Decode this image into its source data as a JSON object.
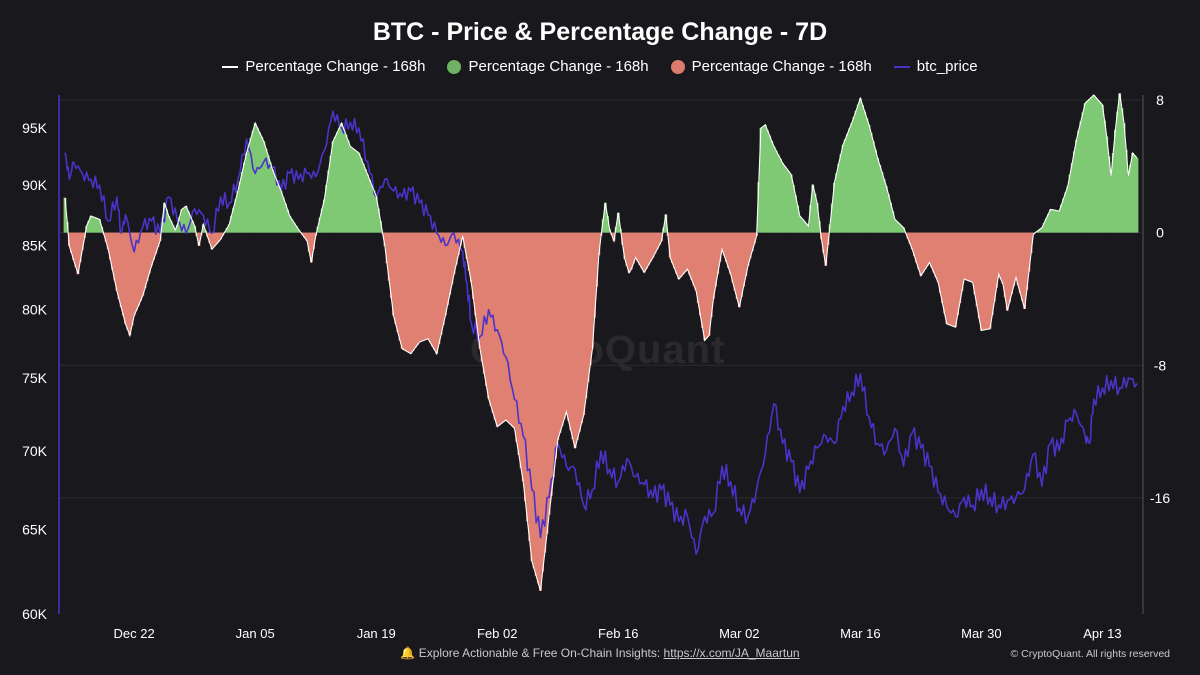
{
  "chart_data": {
    "type": "area+line",
    "title": "BTC - Price & Percentage Change - 7D",
    "legend": [
      {
        "label": "Percentage Change - 168h",
        "kind": "line",
        "color": "#ffffff"
      },
      {
        "label": "Percentage Change - 168h",
        "kind": "dot",
        "color": "#6fb165"
      },
      {
        "label": "Percentage Change - 168h",
        "kind": "dot",
        "color": "#dc7a6e"
      },
      {
        "label": "btc_price",
        "kind": "line",
        "color": "#4b32c8"
      }
    ],
    "colors": {
      "positive": "#7fc975",
      "negative": "#e08072",
      "price": "#4b32c8",
      "change_line": "#ffffff"
    },
    "x_axis": {
      "start": "2024-12-14",
      "end": "2025-04-16",
      "tick_labels": [
        "Dec 22",
        "Jan 05",
        "Jan 19",
        "Feb 02",
        "Feb 16",
        "Mar 02",
        "Mar 16",
        "Mar 30",
        "Apr 13"
      ],
      "tick_days": [
        8,
        22,
        36,
        50,
        64,
        78,
        92,
        106,
        120
      ]
    },
    "y_left": {
      "label": "btc_price",
      "scale": "log",
      "range": [
        60000,
        98000
      ],
      "ticks": [
        60000,
        65000,
        70000,
        75000,
        80000,
        85000,
        90000,
        95000
      ],
      "tick_labels": [
        "60K",
        "65K",
        "70K",
        "75K",
        "80K",
        "85K",
        "90K",
        "95K"
      ]
    },
    "y_right": {
      "label": "Percentage Change - 168h",
      "range": [
        -23,
        8.3
      ],
      "ticks": [
        8,
        0,
        -8,
        -16
      ],
      "tick_labels": [
        "8",
        "0",
        "-8",
        "-16"
      ]
    },
    "pct_change": [
      [
        0,
        2.1
      ],
      [
        0.5,
        -0.8
      ],
      [
        1.5,
        -2.5
      ],
      [
        2.5,
        0.4
      ],
      [
        3,
        1.0
      ],
      [
        4,
        0.8
      ],
      [
        5,
        -1
      ],
      [
        6,
        -3.5
      ],
      [
        7,
        -5.5
      ],
      [
        7.5,
        -6.2
      ],
      [
        8,
        -5
      ],
      [
        9,
        -3.8
      ],
      [
        10,
        -2
      ],
      [
        11,
        -0.5
      ],
      [
        11.5,
        1.8
      ],
      [
        12,
        1.0
      ],
      [
        12.8,
        0.1
      ],
      [
        13.5,
        1.4
      ],
      [
        14,
        1.6
      ],
      [
        15,
        0.4
      ],
      [
        15.5,
        -0.8
      ],
      [
        16,
        0.5
      ],
      [
        17,
        -1
      ],
      [
        18,
        -0.4
      ],
      [
        19,
        0.5
      ],
      [
        20,
        2.5
      ],
      [
        21,
        4.8
      ],
      [
        22,
        6.6
      ],
      [
        23,
        5.5
      ],
      [
        24,
        3.8
      ],
      [
        25,
        2.5
      ],
      [
        26,
        1.0
      ],
      [
        27,
        0.2
      ],
      [
        28,
        -0.5
      ],
      [
        28.5,
        -1.8
      ],
      [
        29,
        -0.2
      ],
      [
        30,
        2
      ],
      [
        31,
        5.5
      ],
      [
        32,
        6.6
      ],
      [
        33,
        5.2
      ],
      [
        34,
        4.8
      ],
      [
        35,
        3.5
      ],
      [
        36,
        2.2
      ],
      [
        37,
        -0.8
      ],
      [
        38,
        -5
      ],
      [
        39,
        -7
      ],
      [
        40,
        -7.3
      ],
      [
        41,
        -6.6
      ],
      [
        42,
        -6.4
      ],
      [
        43,
        -7.3
      ],
      [
        44,
        -5
      ],
      [
        45,
        -2.5
      ],
      [
        46,
        -0.2
      ],
      [
        47,
        -3
      ],
      [
        48,
        -7
      ],
      [
        49,
        -10
      ],
      [
        50,
        -11.7
      ],
      [
        51,
        -11.3
      ],
      [
        52,
        -11.8
      ],
      [
        53,
        -15
      ],
      [
        54,
        -19.8
      ],
      [
        55,
        -21.6
      ],
      [
        56,
        -17
      ],
      [
        57,
        -12.5
      ],
      [
        58,
        -10.8
      ],
      [
        59,
        -13
      ],
      [
        60,
        -11
      ],
      [
        61,
        -7
      ],
      [
        61.8,
        -1
      ],
      [
        62.5,
        1.8
      ],
      [
        63,
        0.2
      ],
      [
        63.5,
        -0.5
      ],
      [
        64,
        1.2
      ],
      [
        64.7,
        -1.5
      ],
      [
        65.3,
        -2.5
      ],
      [
        66,
        -1.5
      ],
      [
        67,
        -2.4
      ],
      [
        68,
        -1.5
      ],
      [
        69,
        -0.5
      ],
      [
        69.5,
        1.1
      ],
      [
        70,
        -1.5
      ],
      [
        71,
        -2.8
      ],
      [
        72,
        -2.2
      ],
      [
        73,
        -3.5
      ],
      [
        74,
        -6.5
      ],
      [
        74.5,
        -6.2
      ],
      [
        75,
        -4
      ],
      [
        76,
        -1
      ],
      [
        77,
        -2.5
      ],
      [
        78,
        -4.5
      ],
      [
        79,
        -2
      ],
      [
        80,
        -0.2
      ],
      [
        80.5,
        6.3
      ],
      [
        81,
        6.5
      ],
      [
        82,
        5.2
      ],
      [
        83,
        4.2
      ],
      [
        84,
        3.5
      ],
      [
        85,
        1
      ],
      [
        86,
        0.4
      ],
      [
        86.5,
        2.9
      ],
      [
        87,
        1.8
      ],
      [
        87.5,
        -0.4
      ],
      [
        88,
        -2
      ],
      [
        89,
        3
      ],
      [
        90,
        5.3
      ],
      [
        91,
        6.6
      ],
      [
        92,
        8.1
      ],
      [
        93,
        6.5
      ],
      [
        94,
        4.5
      ],
      [
        95,
        2.8
      ],
      [
        96,
        0.8
      ],
      [
        97,
        0.3
      ],
      [
        98,
        -1
      ],
      [
        99,
        -2.6
      ],
      [
        100,
        -1.8
      ],
      [
        101,
        -3
      ],
      [
        102,
        -5.5
      ],
      [
        103,
        -5.7
      ],
      [
        104,
        -2.8
      ],
      [
        105,
        -3
      ],
      [
        106,
        -5.9
      ],
      [
        107,
        -5.8
      ],
      [
        108,
        -2.5
      ],
      [
        108.5,
        -3.1
      ],
      [
        109,
        -4.7
      ],
      [
        110,
        -2.7
      ],
      [
        111,
        -4.6
      ],
      [
        112,
        -0.1
      ],
      [
        113,
        0.3
      ],
      [
        114,
        1.4
      ],
      [
        115,
        1.3
      ],
      [
        116,
        2.8
      ],
      [
        117,
        5.6
      ],
      [
        118,
        7.8
      ],
      [
        119,
        8.3
      ],
      [
        120,
        7.7
      ],
      [
        120.5,
        5.8
      ],
      [
        121,
        3.4
      ],
      [
        121.5,
        6.2
      ],
      [
        122,
        8.4
      ],
      [
        122.5,
        6.6
      ],
      [
        123,
        3.4
      ],
      [
        123.5,
        4.8
      ],
      [
        124,
        4.5
      ]
    ],
    "btc_price": [
      [
        0,
        92800
      ],
      [
        0.5,
        90500
      ],
      [
        1,
        92000
      ],
      [
        2,
        91000
      ],
      [
        3,
        90500
      ],
      [
        4,
        90000
      ],
      [
        5,
        87000
      ],
      [
        6,
        89000
      ],
      [
        6.5,
        86000
      ],
      [
        7,
        87500
      ],
      [
        8,
        84500
      ],
      [
        9,
        86500
      ],
      [
        10,
        87000
      ],
      [
        11,
        86000
      ],
      [
        12,
        89000
      ],
      [
        13,
        87000
      ],
      [
        14,
        86000
      ],
      [
        15,
        88000
      ],
      [
        16,
        87500
      ],
      [
        17,
        86000
      ],
      [
        18,
        89000
      ],
      [
        19,
        88500
      ],
      [
        20,
        90500
      ],
      [
        21,
        94000
      ],
      [
        22,
        91000
      ],
      [
        23,
        92000
      ],
      [
        24,
        91500
      ],
      [
        25,
        89500
      ],
      [
        26,
        91000
      ],
      [
        27,
        90500
      ],
      [
        28,
        91000
      ],
      [
        29,
        90700
      ],
      [
        30,
        93000
      ],
      [
        31,
        96500
      ],
      [
        32,
        95000
      ],
      [
        33,
        95500
      ],
      [
        34,
        95000
      ],
      [
        35,
        92000
      ],
      [
        36,
        89000
      ],
      [
        37,
        90500
      ],
      [
        38,
        89500
      ],
      [
        39,
        89000
      ],
      [
        40,
        89500
      ],
      [
        41,
        88500
      ],
      [
        42,
        87500
      ],
      [
        43,
        86000
      ],
      [
        44,
        85000
      ],
      [
        45,
        86000
      ],
      [
        46,
        84500
      ],
      [
        46.5,
        82000
      ],
      [
        47,
        79000
      ],
      [
        48,
        78000
      ],
      [
        49,
        80000
      ],
      [
        50,
        78500
      ],
      [
        51,
        76500
      ],
      [
        52,
        73500
      ],
      [
        53,
        71000
      ],
      [
        54,
        67500
      ],
      [
        55,
        64500
      ],
      [
        56,
        67000
      ],
      [
        57,
        70500
      ],
      [
        58,
        69000
      ],
      [
        59,
        68800
      ],
      [
        60,
        66500
      ],
      [
        61,
        67500
      ],
      [
        62,
        70000
      ],
      [
        63,
        68800
      ],
      [
        64,
        68000
      ],
      [
        65,
        69500
      ],
      [
        66,
        68300
      ],
      [
        67,
        67800
      ],
      [
        68,
        67000
      ],
      [
        69,
        67500
      ],
      [
        70,
        66500
      ],
      [
        71,
        65500
      ],
      [
        72,
        65800
      ],
      [
        73,
        63500
      ],
      [
        74,
        65800
      ],
      [
        75,
        66000
      ],
      [
        76,
        69000
      ],
      [
        77,
        68000
      ],
      [
        78,
        66300
      ],
      [
        79,
        65800
      ],
      [
        80,
        67500
      ],
      [
        81,
        69800
      ],
      [
        82,
        73200
      ],
      [
        83,
        70500
      ],
      [
        84,
        69300
      ],
      [
        85,
        67300
      ],
      [
        86,
        68800
      ],
      [
        87,
        70200
      ],
      [
        88,
        71000
      ],
      [
        89,
        70500
      ],
      [
        90,
        73000
      ],
      [
        91,
        74000
      ],
      [
        92,
        75300
      ],
      [
        93,
        72300
      ],
      [
        94,
        70500
      ],
      [
        95,
        70000
      ],
      [
        96,
        71500
      ],
      [
        97,
        69000
      ],
      [
        98,
        71200
      ],
      [
        99,
        70200
      ],
      [
        100,
        69000
      ],
      [
        101,
        67300
      ],
      [
        102,
        66400
      ],
      [
        103,
        65800
      ],
      [
        104,
        67000
      ],
      [
        105,
        66500
      ],
      [
        106,
        67500
      ],
      [
        107,
        67000
      ],
      [
        108,
        66500
      ],
      [
        109,
        66800
      ],
      [
        110,
        67000
      ],
      [
        111,
        67500
      ],
      [
        112,
        69800
      ],
      [
        113,
        67700
      ],
      [
        114,
        70500
      ],
      [
        115,
        70000
      ],
      [
        116,
        72000
      ],
      [
        117,
        72500
      ],
      [
        118,
        71000
      ],
      [
        118.5,
        70500
      ],
      [
        119,
        73500
      ],
      [
        120,
        74300
      ],
      [
        121,
        74800
      ],
      [
        122,
        74300
      ],
      [
        123,
        75000
      ],
      [
        124,
        74600
      ]
    ]
  },
  "footer": {
    "bell_icon": "🔔",
    "text": "Explore Actionable & Free On-Chain Insights: ",
    "link": "https://x.com/JA_Maartun",
    "copyright": "© CryptoQuant. All rights reserved"
  },
  "watermark": "CryptoQuant"
}
